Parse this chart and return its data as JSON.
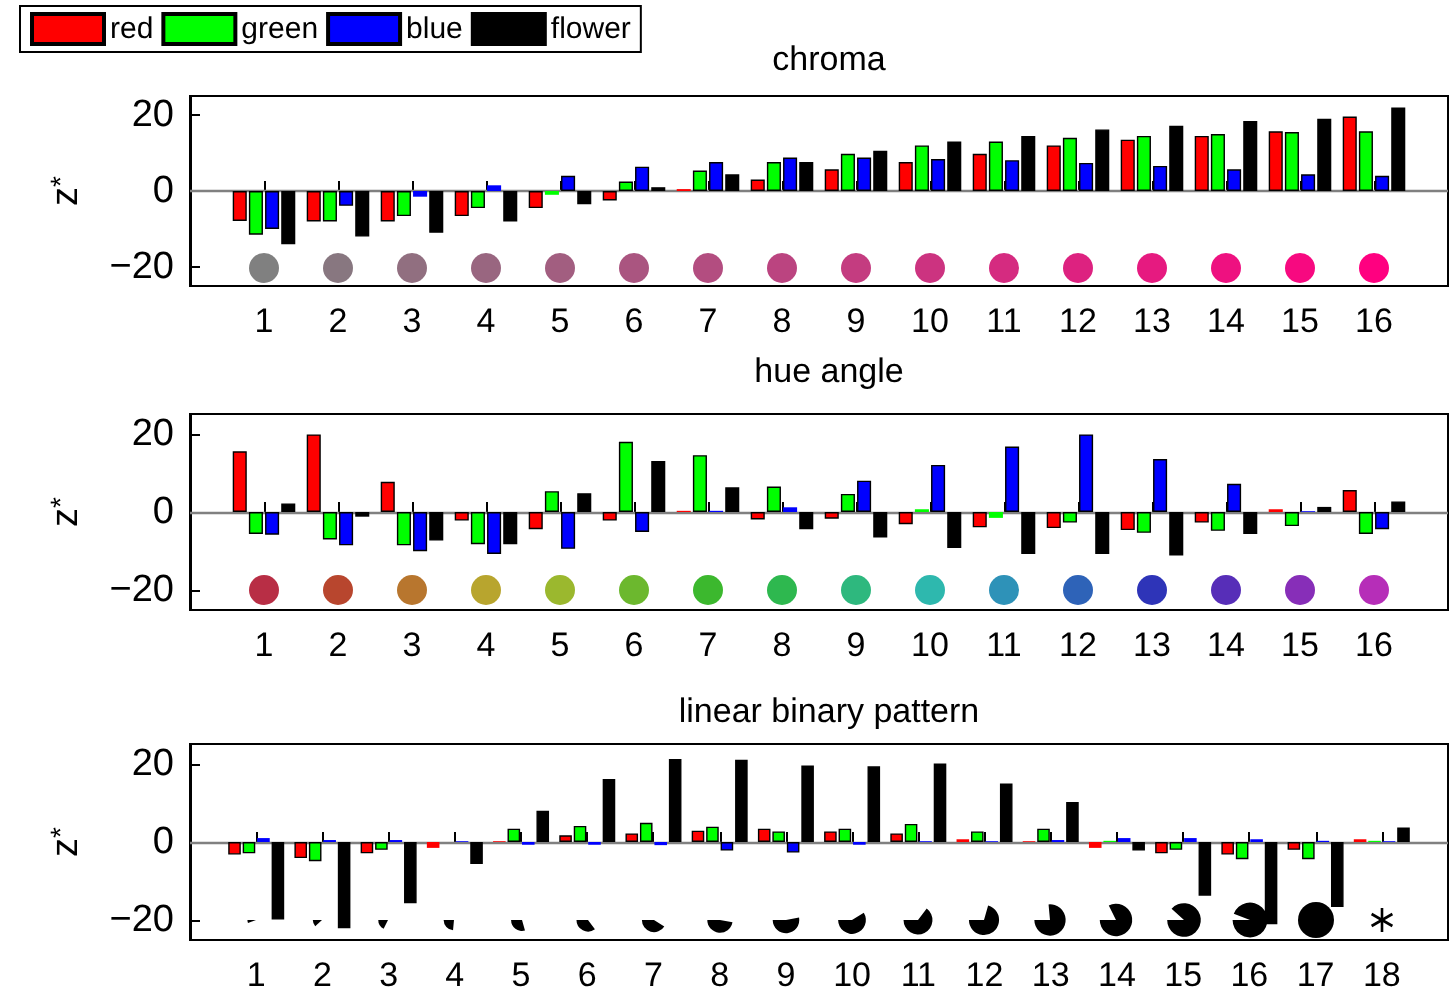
{
  "chart_data": [
    {
      "type": "bar",
      "title": "chroma",
      "ylabel": "z$^{*}$",
      "x": [
        1,
        2,
        3,
        4,
        5,
        6,
        7,
        8,
        9,
        10,
        11,
        12,
        13,
        14,
        15,
        16
      ],
      "xlim": [
        0,
        17
      ],
      "xticks": [
        1,
        2,
        3,
        4,
        5,
        6,
        7,
        8,
        9,
        10,
        11,
        12,
        13,
        14,
        15,
        16
      ],
      "ylim": [
        -25,
        25
      ],
      "yticks": [
        -20,
        0,
        20
      ],
      "grid": false,
      "legend": "top left",
      "ref_lines": [
        {
          "axis": "y",
          "value": 0,
          "color": "#808080"
        }
      ],
      "series": [
        {
          "name": "red",
          "color": "#ff0000",
          "values": [
            -7.9,
            -8,
            -8,
            -6.6,
            -4.5,
            -2.5,
            0.5,
            3,
            5.7,
            7.6,
            9.8,
            12,
            13.5,
            14.5,
            15.7,
            19.6
          ]
        },
        {
          "name": "green",
          "color": "#00ff00",
          "values": [
            -11.5,
            -8,
            -6.6,
            -4.5,
            -1,
            2.5,
            5.4,
            7.6,
            9.8,
            12,
            13,
            14,
            14.5,
            15,
            15.5,
            15.7
          ]
        },
        {
          "name": "blue",
          "color": "#0000ff",
          "values": [
            -10,
            -3.9,
            -1.5,
            1.5,
            4,
            6.4,
            7.6,
            8.8,
            8.8,
            8.4,
            8.1,
            7.4,
            6.6,
            5.7,
            4.4,
            4
          ]
        },
        {
          "name": "flower",
          "color": "#000000",
          "values": [
            -14,
            -12,
            -11,
            -8,
            -3.5,
            1,
            4.4,
            7.6,
            10.6,
            13,
            14.5,
            16.2,
            17.2,
            18.4,
            19,
            22
          ]
        }
      ]
    },
    {
      "type": "bar",
      "title": "hue angle",
      "ylabel": "z$^{*}$",
      "x": [
        1,
        2,
        3,
        4,
        5,
        6,
        7,
        8,
        9,
        10,
        11,
        12,
        13,
        14,
        15,
        16
      ],
      "xlim": [
        0,
        17
      ],
      "xticks": [
        1,
        2,
        3,
        4,
        5,
        6,
        7,
        8,
        9,
        10,
        11,
        12,
        13,
        14,
        15,
        16
      ],
      "ylim": [
        -25,
        25
      ],
      "yticks": [
        -20,
        0,
        20
      ],
      "grid": false,
      "ref_lines": [
        {
          "axis": "y",
          "value": 0,
          "color": "#808080"
        }
      ],
      "series": [
        {
          "color": "#ff0000",
          "values": [
            15.5,
            19.8,
            7.7,
            -2.2,
            -4.4,
            -2.2,
            0.3,
            -1.9,
            -1.7,
            -3.1,
            -3.9,
            -4.1,
            -4.6,
            -2.7,
            0.7,
            5.6
          ]
        },
        {
          "color": "#00ff00",
          "values": [
            -5.6,
            -7,
            -8.5,
            -8.2,
            5.3,
            17.9,
            14.5,
            6.5,
            4.6,
            0.7,
            -1.5,
            -2.7,
            -5.3,
            -4.8,
            -3.6,
            -5.6
          ]
        },
        {
          "color": "#0000ff",
          "values": [
            -5.8,
            -8.5,
            -10,
            -10.7,
            -9.4,
            -5.1,
            0.3,
            1.2,
            8,
            12,
            16.7,
            19.8,
            13.5,
            7.2,
            0.2,
            -4.4
          ]
        },
        {
          "color": "#000000",
          "values": [
            2.2,
            -1.2,
            -7.3,
            -8.2,
            4.8,
            13,
            6.3,
            -4.4,
            -6.5,
            -9.2,
            -10.7,
            -10.7,
            -11.1,
            -5.6,
            1.3,
            2.7
          ]
        }
      ]
    },
    {
      "type": "bar",
      "title": "linear binary pattern",
      "ylabel": "z$^{*}$",
      "x": [
        1,
        2,
        3,
        4,
        5,
        6,
        7,
        8,
        9,
        10,
        11,
        12,
        13,
        14,
        15,
        16,
        17,
        18
      ],
      "xlim": [
        0,
        19
      ],
      "xticks": [
        1,
        2,
        3,
        4,
        5,
        6,
        7,
        8,
        9,
        10,
        11,
        12,
        13,
        14,
        15,
        16,
        17,
        18
      ],
      "ylim": [
        -25,
        25
      ],
      "yticks": [
        -20,
        0,
        20
      ],
      "grid": false,
      "ref_lines": [
        {
          "axis": "y",
          "value": 0,
          "color": "#808080"
        }
      ],
      "series": [
        {
          "color": "#ff0000",
          "values": [
            -3.2,
            -4.1,
            -2.9,
            -1.5,
            0.2,
            1.7,
            2.2,
            2.9,
            3.4,
            2.7,
            2.2,
            0.7,
            0.2,
            -1.5,
            -2.9,
            -3.2,
            -2,
            0.7
          ]
        },
        {
          "color": "#00ff00",
          "values": [
            -2.9,
            -4.9,
            -2,
            0,
            3.4,
            4.1,
            4.9,
            3.9,
            2.7,
            3.4,
            4.6,
            2.7,
            3.4,
            0.3,
            -2,
            -4.4,
            -4.4,
            0.3
          ]
        },
        {
          "color": "#0000ff",
          "values": [
            1,
            0.5,
            0.5,
            0.2,
            -0.7,
            -0.7,
            -0.8,
            -2.2,
            -2.7,
            -0.7,
            0.2,
            0.2,
            0.5,
            1,
            1,
            0.7,
            0.3,
            0.2
          ]
        },
        {
          "color": "#000000",
          "values": [
            -19.8,
            -22,
            -15.6,
            -5.6,
            8,
            16.1,
            21.2,
            21,
            19.5,
            19.3,
            20,
            14.9,
            10.2,
            -2.2,
            -13.7,
            -21,
            -16.6,
            3.7
          ]
        }
      ]
    }
  ]
}
